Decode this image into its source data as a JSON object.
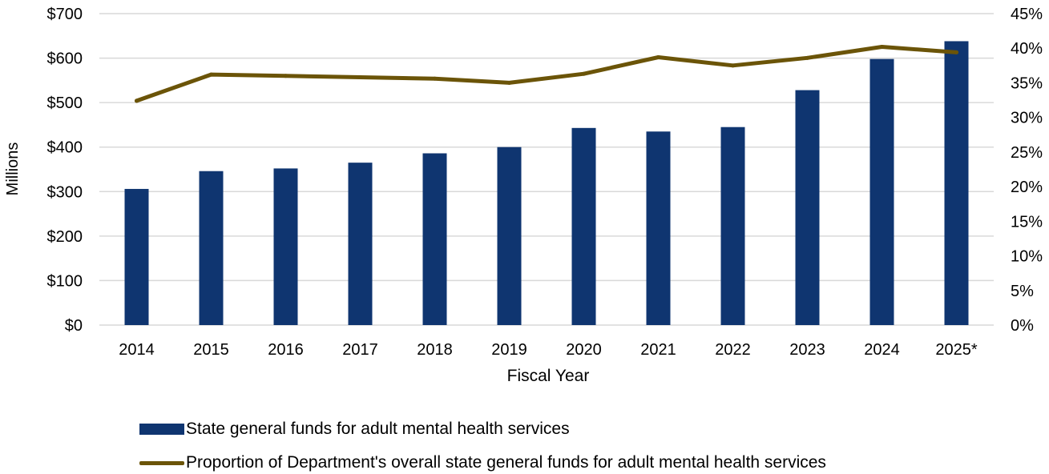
{
  "chart_data": {
    "type": "bar",
    "categories": [
      "2014",
      "2015",
      "2016",
      "2017",
      "2018",
      "2019",
      "2020",
      "2021",
      "2022",
      "2023",
      "2024",
      "2025*"
    ],
    "series": [
      {
        "name": "State general funds for adult mental health services",
        "type": "bar",
        "axis": "left",
        "color": "#0f3570",
        "values": [
          306,
          346,
          352,
          365,
          386,
          400,
          443,
          435,
          445,
          528,
          598,
          638
        ]
      },
      {
        "name": "Proportion of Department's overall state general funds for adult mental health services",
        "type": "line",
        "axis": "right",
        "color": "#6b5408",
        "values": [
          32.4,
          36.2,
          36.0,
          35.8,
          35.6,
          35.0,
          36.3,
          38.7,
          37.5,
          38.6,
          40.2,
          39.4
        ]
      }
    ],
    "xlabel": "Fiscal Year",
    "ylabel": "Millions",
    "ylim": [
      0,
      700
    ],
    "y2lim": [
      0,
      45
    ],
    "yticks": [
      "$0",
      "$100",
      "$200",
      "$300",
      "$400",
      "$500",
      "$600",
      "$700"
    ],
    "y2ticks": [
      "0%",
      "5%",
      "10%",
      "15%",
      "20%",
      "25%",
      "30%",
      "35%",
      "40%",
      "45%"
    ],
    "grid": true,
    "legend_position": "bottom"
  }
}
